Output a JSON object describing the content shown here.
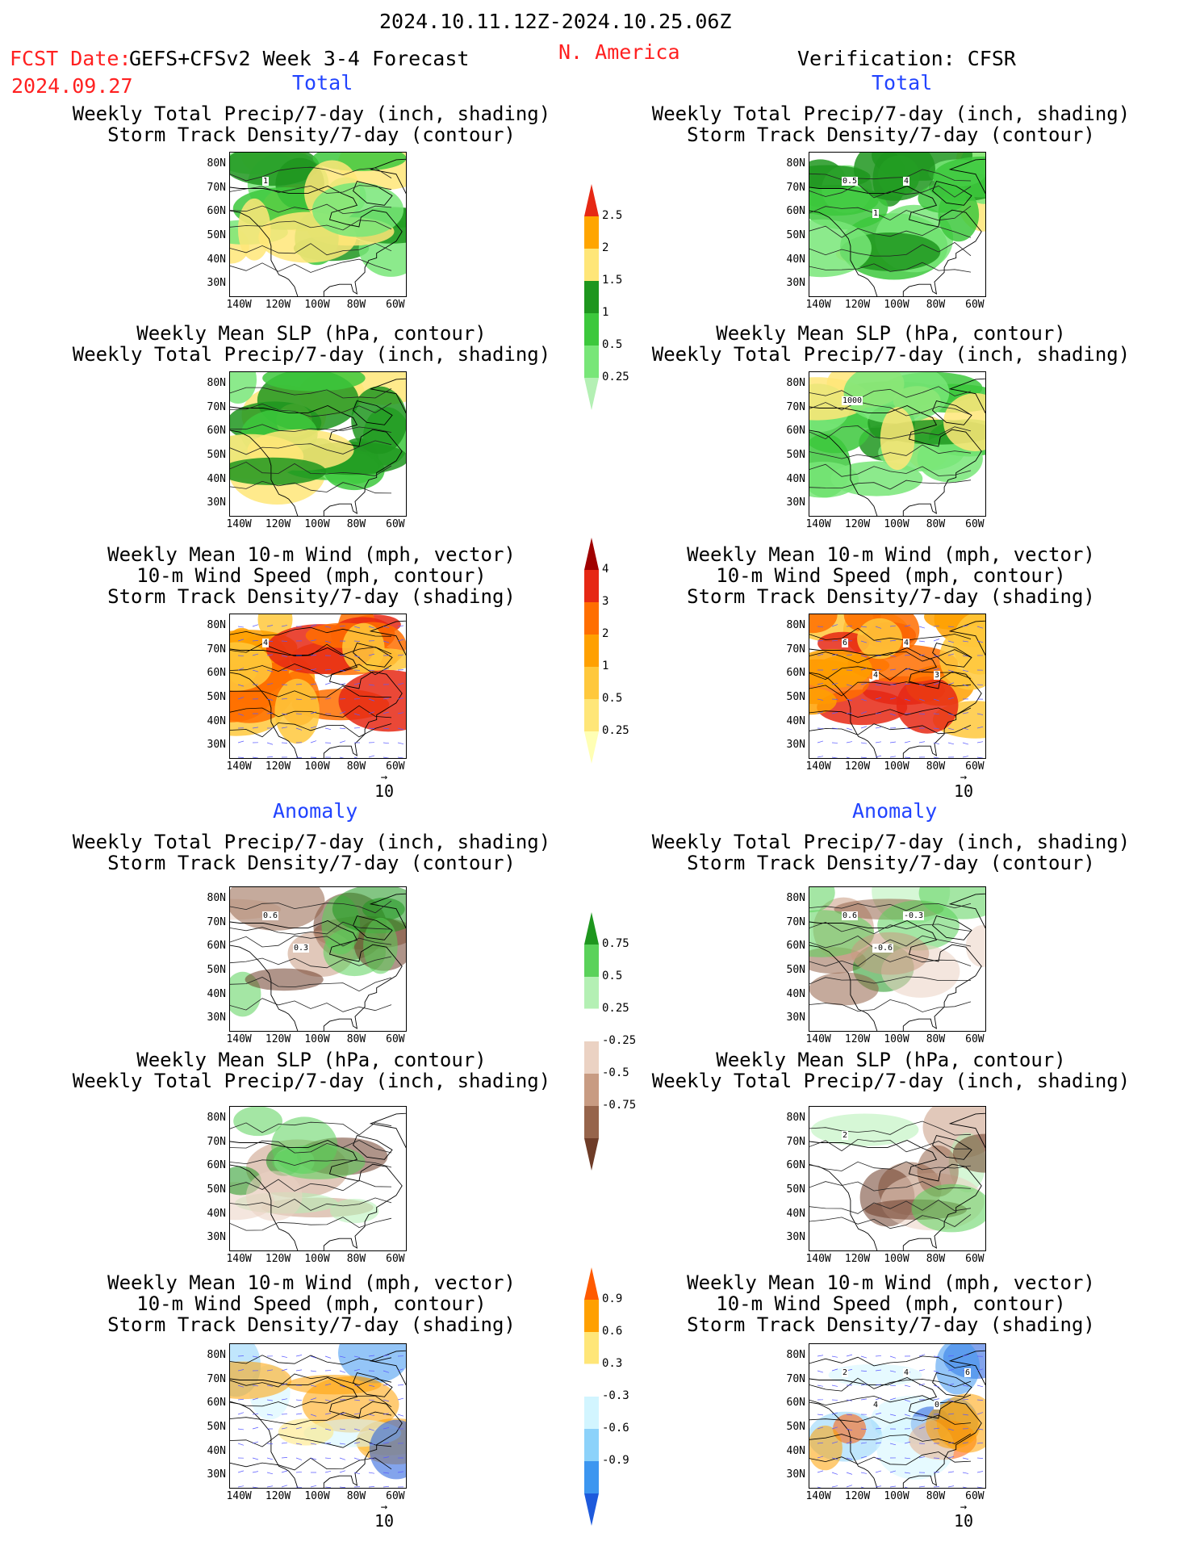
{
  "header": {
    "period": "2024.10.11.12Z-2024.10.25.06Z",
    "fcst_label": "FCST Date:",
    "fcst_date": "2024.09.27",
    "model": "GEFS+CFSv2 Week 3-4 Forecast",
    "region": "N. America",
    "verification": "Verification: CFSR"
  },
  "sections": {
    "total": "Total",
    "anomaly": "Anomaly"
  },
  "titles": {
    "precip_storm": [
      "Weekly Total Precip/7-day (inch, shading)",
      "Storm Track Density/7-day (contour)"
    ],
    "slp_precip": [
      "Weekly Mean SLP (hPa, contour)",
      "Weekly Total Precip/7-day (inch, shading)"
    ],
    "wind": [
      "Weekly Mean 10-m Wind (mph, vector)",
      "10-m Wind Speed (mph, contour)",
      "Storm Track Density/7-day (shading)"
    ]
  },
  "chart_data": {
    "type": "heatmap",
    "map_axes": {
      "lat_ticks": [
        "80N",
        "70N",
        "60N",
        "50N",
        "40N",
        "30N"
      ],
      "lon_ticks": [
        "140W",
        "120W",
        "100W",
        "80W",
        "60W"
      ],
      "lat_range": [
        25,
        85
      ],
      "lon_range": [
        -145,
        -55
      ]
    },
    "vector_reference": "10",
    "colorbars": [
      {
        "id": "precip_total",
        "levels": [
          "0.25",
          "0.5",
          "1",
          "1.5",
          "2",
          "2.5"
        ],
        "colors": [
          "#b4f0b4",
          "#78e678",
          "#3cc83c",
          "#1e961e",
          "#ffe678",
          "#ffa500",
          "#e62814"
        ]
      },
      {
        "id": "storm_total",
        "levels": [
          "0.25",
          "0.5",
          "1",
          "2",
          "3",
          "4"
        ],
        "colors": [
          "#ffffb4",
          "#ffe678",
          "#ffc83c",
          "#ffa000",
          "#ff6e00",
          "#e62814",
          "#a00000"
        ]
      },
      {
        "id": "precip_anom",
        "levels": [
          "-0.75",
          "-0.5",
          "-0.25",
          "0.25",
          "0.5",
          "0.75"
        ],
        "colors": [
          "#6e3c28",
          "#96644b",
          "#c89b82",
          "#ebd2c3",
          "#ffffff",
          "#b4f0b4",
          "#5ad25a",
          "#1e961e"
        ]
      },
      {
        "id": "storm_anom",
        "levels": [
          "-0.9",
          "-0.6",
          "-0.3",
          "0.3",
          "0.6",
          "0.9"
        ],
        "colors": [
          "#1e5adc",
          "#3c96f0",
          "#8cd2fa",
          "#d2f5ff",
          "#ffffff",
          "#ffe678",
          "#ffa000",
          "#ff5a00"
        ]
      }
    ],
    "panels": [
      {
        "id": "fcst-total-precip-storm",
        "column": "forecast",
        "scale": "precip_total",
        "contour_labels": [
          "1"
        ]
      },
      {
        "id": "obs-total-precip-storm",
        "column": "verification",
        "scale": "precip_total",
        "contour_labels": [
          "0.5",
          "1",
          "4"
        ]
      },
      {
        "id": "fcst-total-slp-precip",
        "column": "forecast",
        "scale": "precip_total",
        "contour_labels": []
      },
      {
        "id": "obs-total-slp-precip",
        "column": "verification",
        "scale": "precip_total",
        "contour_labels": [
          "1000"
        ]
      },
      {
        "id": "fcst-total-wind",
        "column": "forecast",
        "scale": "storm_total",
        "contour_labels": [
          "4"
        ]
      },
      {
        "id": "obs-total-wind",
        "column": "verification",
        "scale": "storm_total",
        "contour_labels": [
          "6",
          "4",
          "4",
          "3"
        ]
      },
      {
        "id": "fcst-anom-precip-storm",
        "column": "forecast",
        "scale": "precip_anom",
        "contour_labels": [
          "0.6",
          "0.3"
        ]
      },
      {
        "id": "obs-anom-precip-storm",
        "column": "verification",
        "scale": "precip_anom",
        "contour_labels": [
          "0.6",
          "-0.6",
          "-0.3"
        ]
      },
      {
        "id": "fcst-anom-slp-precip",
        "column": "forecast",
        "scale": "precip_anom",
        "contour_labels": []
      },
      {
        "id": "obs-anom-slp-precip",
        "column": "verification",
        "scale": "precip_anom",
        "contour_labels": [
          "2"
        ]
      },
      {
        "id": "fcst-anom-wind",
        "column": "forecast",
        "scale": "storm_anom",
        "contour_labels": []
      },
      {
        "id": "obs-anom-wind",
        "column": "verification",
        "scale": "storm_anom",
        "contour_labels": [
          "2",
          "4",
          "4",
          "0",
          "6"
        ]
      }
    ]
  }
}
